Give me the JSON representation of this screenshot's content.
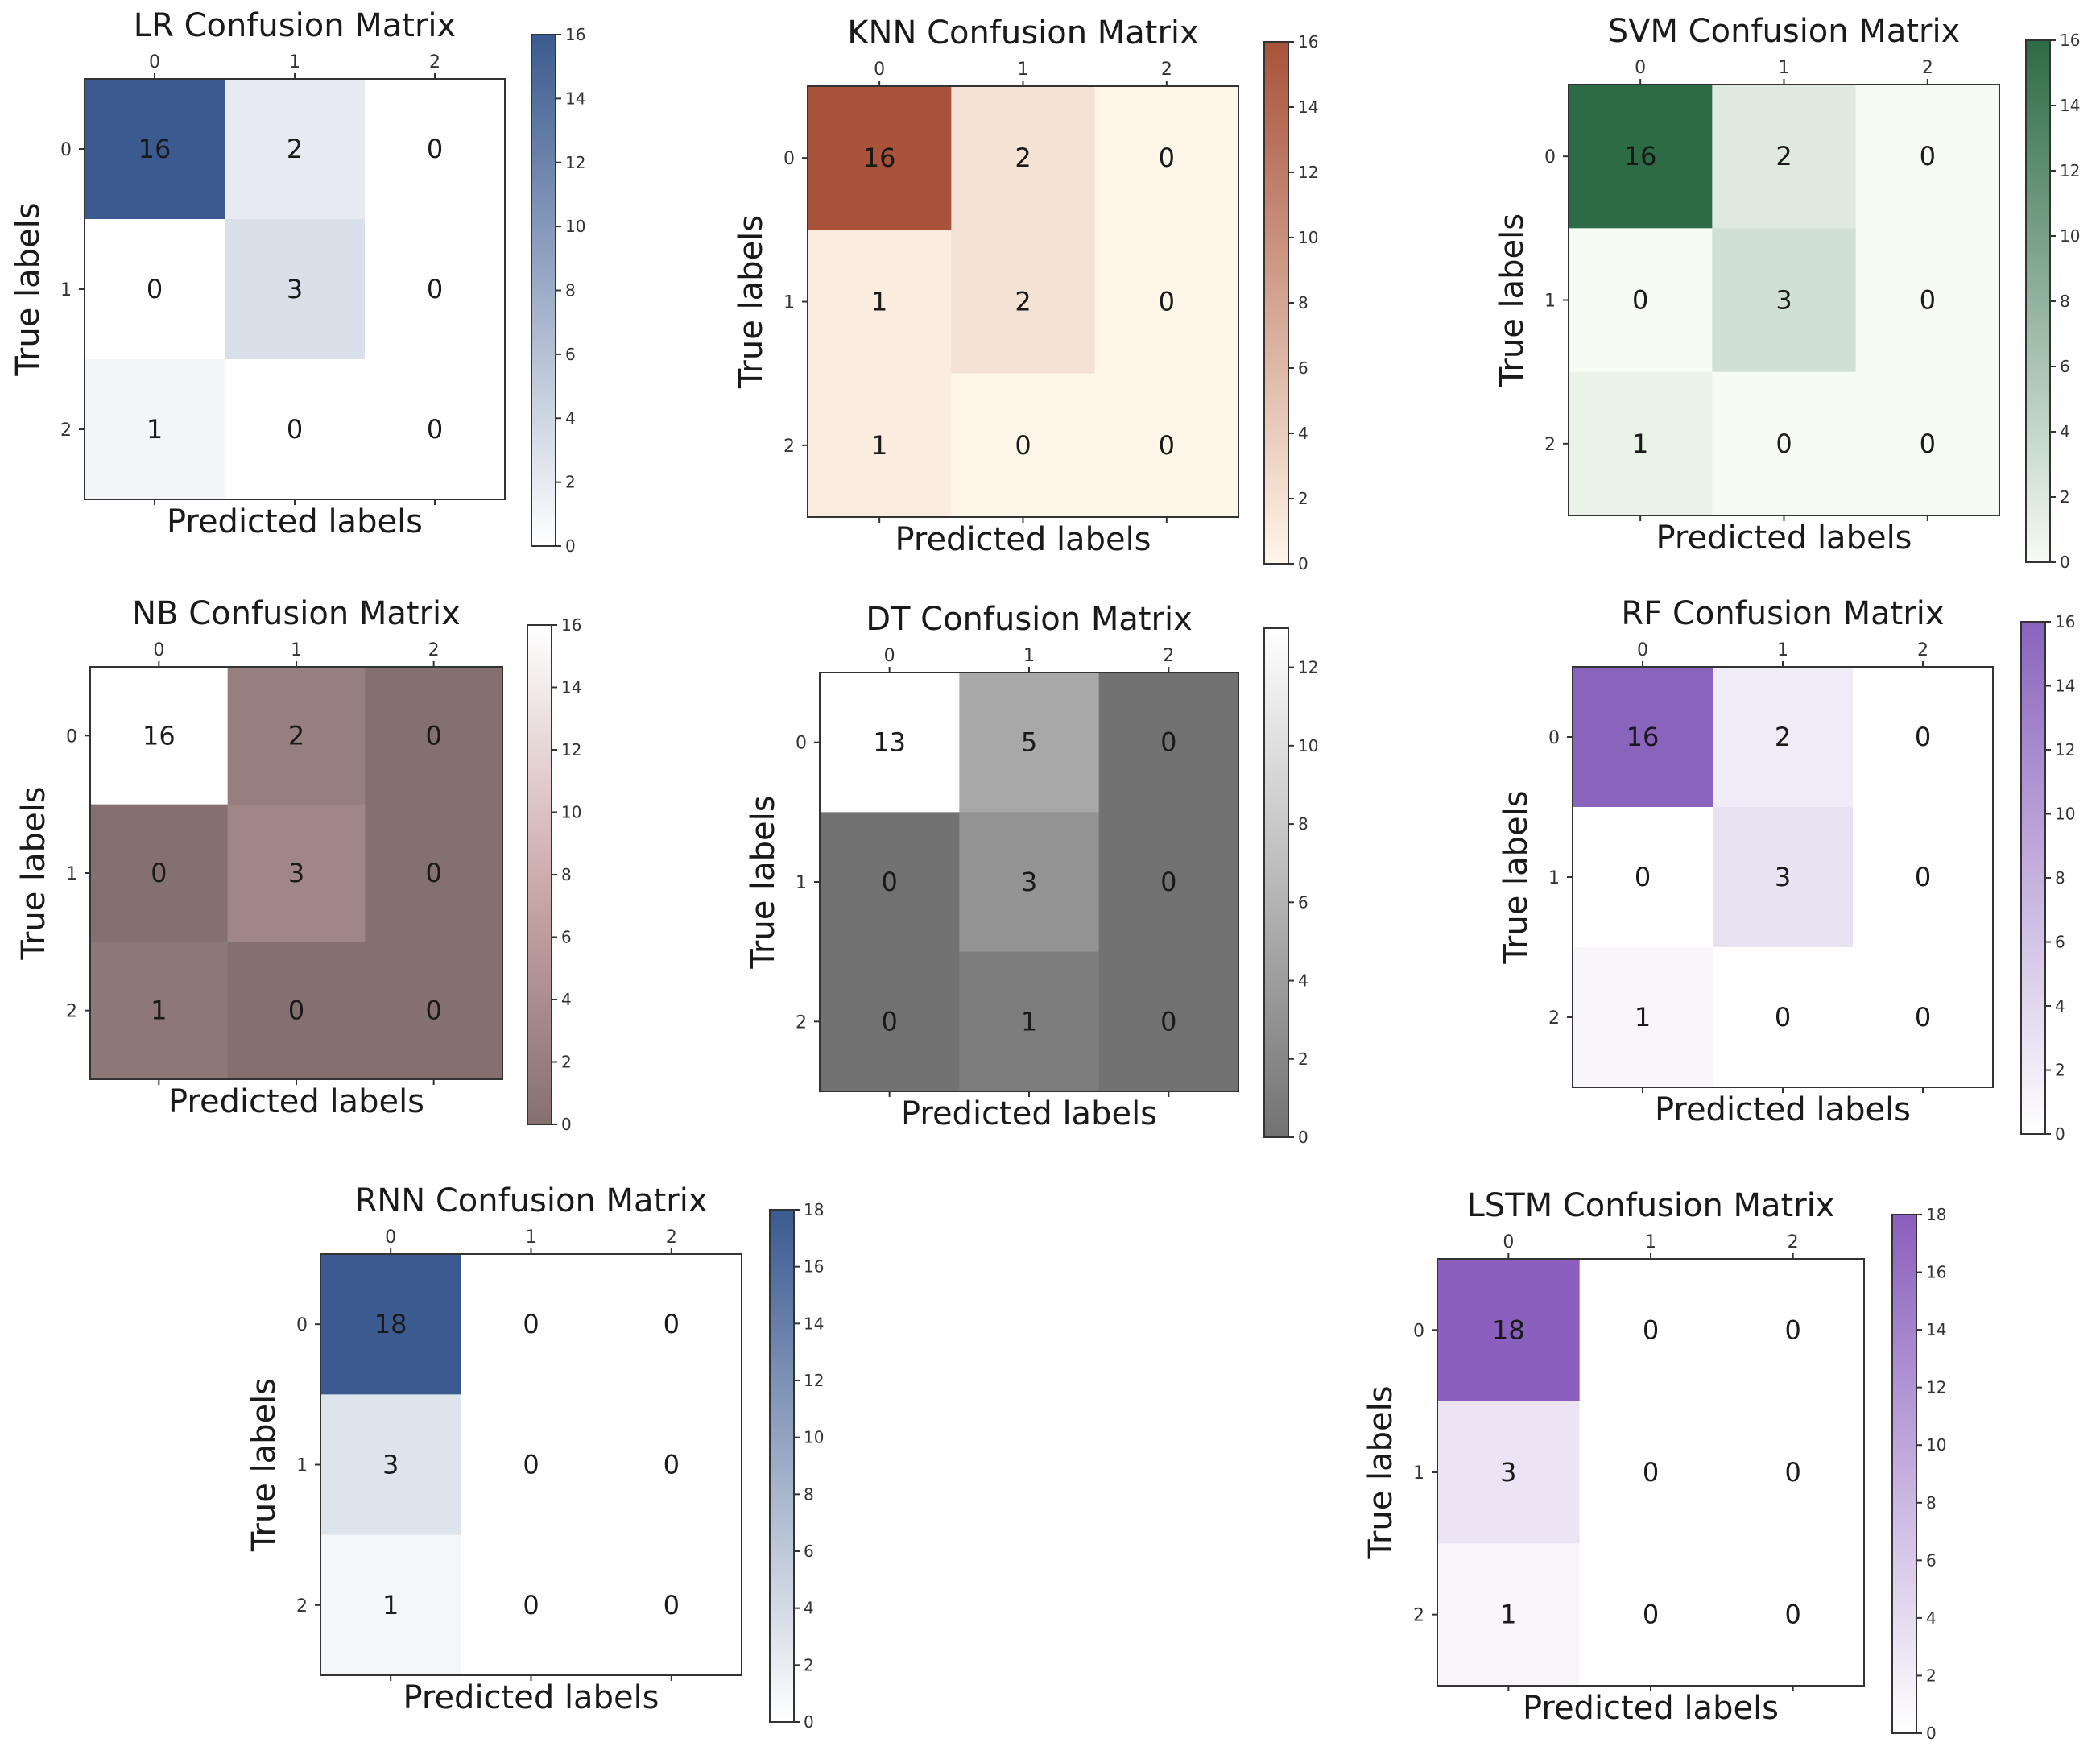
{
  "chart_data": [
    {
      "type": "heatmap",
      "title": "LR Confusion Matrix",
      "xlabel": "Predicted labels",
      "ylabel": "True labels",
      "x_ticks": [
        "0",
        "1",
        "2"
      ],
      "y_ticks": [
        "0",
        "1",
        "2"
      ],
      "values": [
        [
          16,
          2,
          0
        ],
        [
          0,
          3,
          0
        ],
        [
          1,
          0,
          0
        ]
      ],
      "colorbar": {
        "min": 0,
        "max": 16,
        "ticks": [
          "0",
          "2",
          "4",
          "6",
          "8",
          "10",
          "12",
          "14",
          "16"
        ]
      },
      "colors": {
        "low": "#ffffff",
        "high": "#3b5a8f"
      }
    },
    {
      "type": "heatmap",
      "title": "KNN Confusion Matrix",
      "xlabel": "Predicted labels",
      "ylabel": "True labels",
      "x_ticks": [
        "0",
        "1",
        "2"
      ],
      "y_ticks": [
        "0",
        "1",
        "2"
      ],
      "values": [
        [
          16,
          2,
          0
        ],
        [
          1,
          2,
          0
        ],
        [
          1,
          0,
          0
        ]
      ],
      "colorbar": {
        "min": 0,
        "max": 16,
        "ticks": [
          "0",
          "2",
          "4",
          "6",
          "8",
          "10",
          "12",
          "14",
          "16"
        ]
      },
      "colors": {
        "low": "#fff6ea",
        "high": "#a8533a"
      }
    },
    {
      "type": "heatmap",
      "title": "SVM Confusion Matrix",
      "xlabel": "Predicted labels",
      "ylabel": "True labels",
      "x_ticks": [
        "0",
        "1",
        "2"
      ],
      "y_ticks": [
        "0",
        "1",
        "2"
      ],
      "values": [
        [
          16,
          2,
          0
        ],
        [
          0,
          3,
          0
        ],
        [
          1,
          0,
          0
        ]
      ],
      "colorbar": {
        "min": 0,
        "max": 16,
        "ticks": [
          "0",
          "2",
          "4",
          "6",
          "8",
          "10",
          "12",
          "14",
          "16"
        ]
      },
      "colors": {
        "low": "#f6fcf3",
        "high": "#2d6a46"
      }
    },
    {
      "type": "heatmap",
      "title": "NB Confusion Matrix",
      "xlabel": "Predicted labels",
      "ylabel": "True labels",
      "x_ticks": [
        "0",
        "1",
        "2"
      ],
      "y_ticks": [
        "0",
        "1",
        "2"
      ],
      "values": [
        [
          16,
          2,
          0
        ],
        [
          0,
          3,
          0
        ],
        [
          1,
          0,
          0
        ]
      ],
      "colorbar": {
        "min": 0,
        "max": 16,
        "ticks": [
          "0",
          "2",
          "4",
          "6",
          "8",
          "10",
          "12",
          "14",
          "16"
        ]
      },
      "colors": {
        "low": "#857070",
        "mid": "#c9a5a5",
        "high": "#ffffff"
      }
    },
    {
      "type": "heatmap",
      "title": "DT Confusion Matrix",
      "xlabel": "Predicted labels",
      "ylabel": "True labels",
      "x_ticks": [
        "0",
        "1",
        "2"
      ],
      "y_ticks": [
        "0",
        "1",
        "2"
      ],
      "values": [
        [
          13,
          5,
          0
        ],
        [
          0,
          3,
          0
        ],
        [
          0,
          1,
          0
        ]
      ],
      "colorbar": {
        "min": 0,
        "max": 13,
        "ticks": [
          "0",
          "2",
          "4",
          "6",
          "8",
          "10",
          "12"
        ]
      },
      "colors": {
        "low": "#727272",
        "high": "#ffffff"
      }
    },
    {
      "type": "heatmap",
      "title": "RF Confusion Matrix",
      "xlabel": "Predicted labels",
      "ylabel": "True labels",
      "x_ticks": [
        "0",
        "1",
        "2"
      ],
      "y_ticks": [
        "0",
        "1",
        "2"
      ],
      "values": [
        [
          16,
          2,
          0
        ],
        [
          0,
          3,
          0
        ],
        [
          1,
          0,
          0
        ]
      ],
      "colorbar": {
        "min": 0,
        "max": 16,
        "ticks": [
          "0",
          "2",
          "4",
          "6",
          "8",
          "10",
          "12",
          "14",
          "16"
        ]
      },
      "colors": {
        "low": "#ffffff",
        "high": "#8a63bd"
      }
    },
    {
      "type": "heatmap",
      "title": "RNN Confusion Matrix",
      "xlabel": "Predicted labels",
      "ylabel": "True labels",
      "x_ticks": [
        "0",
        "1",
        "2"
      ],
      "y_ticks": [
        "0",
        "1",
        "2"
      ],
      "values": [
        [
          18,
          0,
          0
        ],
        [
          3,
          0,
          0
        ],
        [
          1,
          0,
          0
        ]
      ],
      "colorbar": {
        "min": 0,
        "max": 18,
        "ticks": [
          "0",
          "2",
          "4",
          "6",
          "8",
          "10",
          "12",
          "14",
          "16",
          "18"
        ]
      },
      "colors": {
        "low": "#ffffff",
        "high": "#3b5a8f"
      }
    },
    {
      "type": "heatmap",
      "title": "LSTM Confusion Matrix",
      "xlabel": "Predicted labels",
      "ylabel": "True labels",
      "x_ticks": [
        "0",
        "1",
        "2"
      ],
      "y_ticks": [
        "0",
        "1",
        "2"
      ],
      "values": [
        [
          18,
          0,
          0
        ],
        [
          3,
          0,
          0
        ],
        [
          1,
          0,
          0
        ]
      ],
      "colorbar": {
        "min": 0,
        "max": 18,
        "ticks": [
          "0",
          "2",
          "4",
          "6",
          "8",
          "10",
          "12",
          "14",
          "16",
          "18"
        ]
      },
      "colors": {
        "low": "#ffffff",
        "high": "#8a5fbd"
      }
    }
  ]
}
